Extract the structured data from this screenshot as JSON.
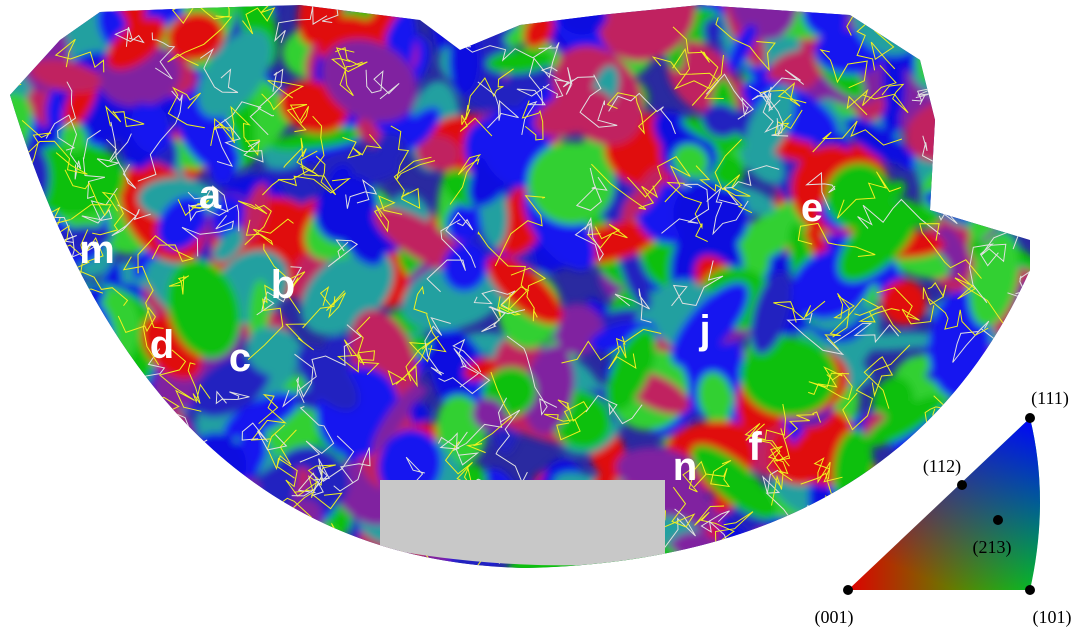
{
  "map_labels": [
    "a",
    "m",
    "b",
    "d",
    "c",
    "e",
    "j",
    "f",
    "n"
  ],
  "legend": {
    "corners": {
      "top": "(111)",
      "left": "(001)",
      "right": "(101)"
    },
    "points": [
      "(112)",
      "(213)"
    ]
  }
}
